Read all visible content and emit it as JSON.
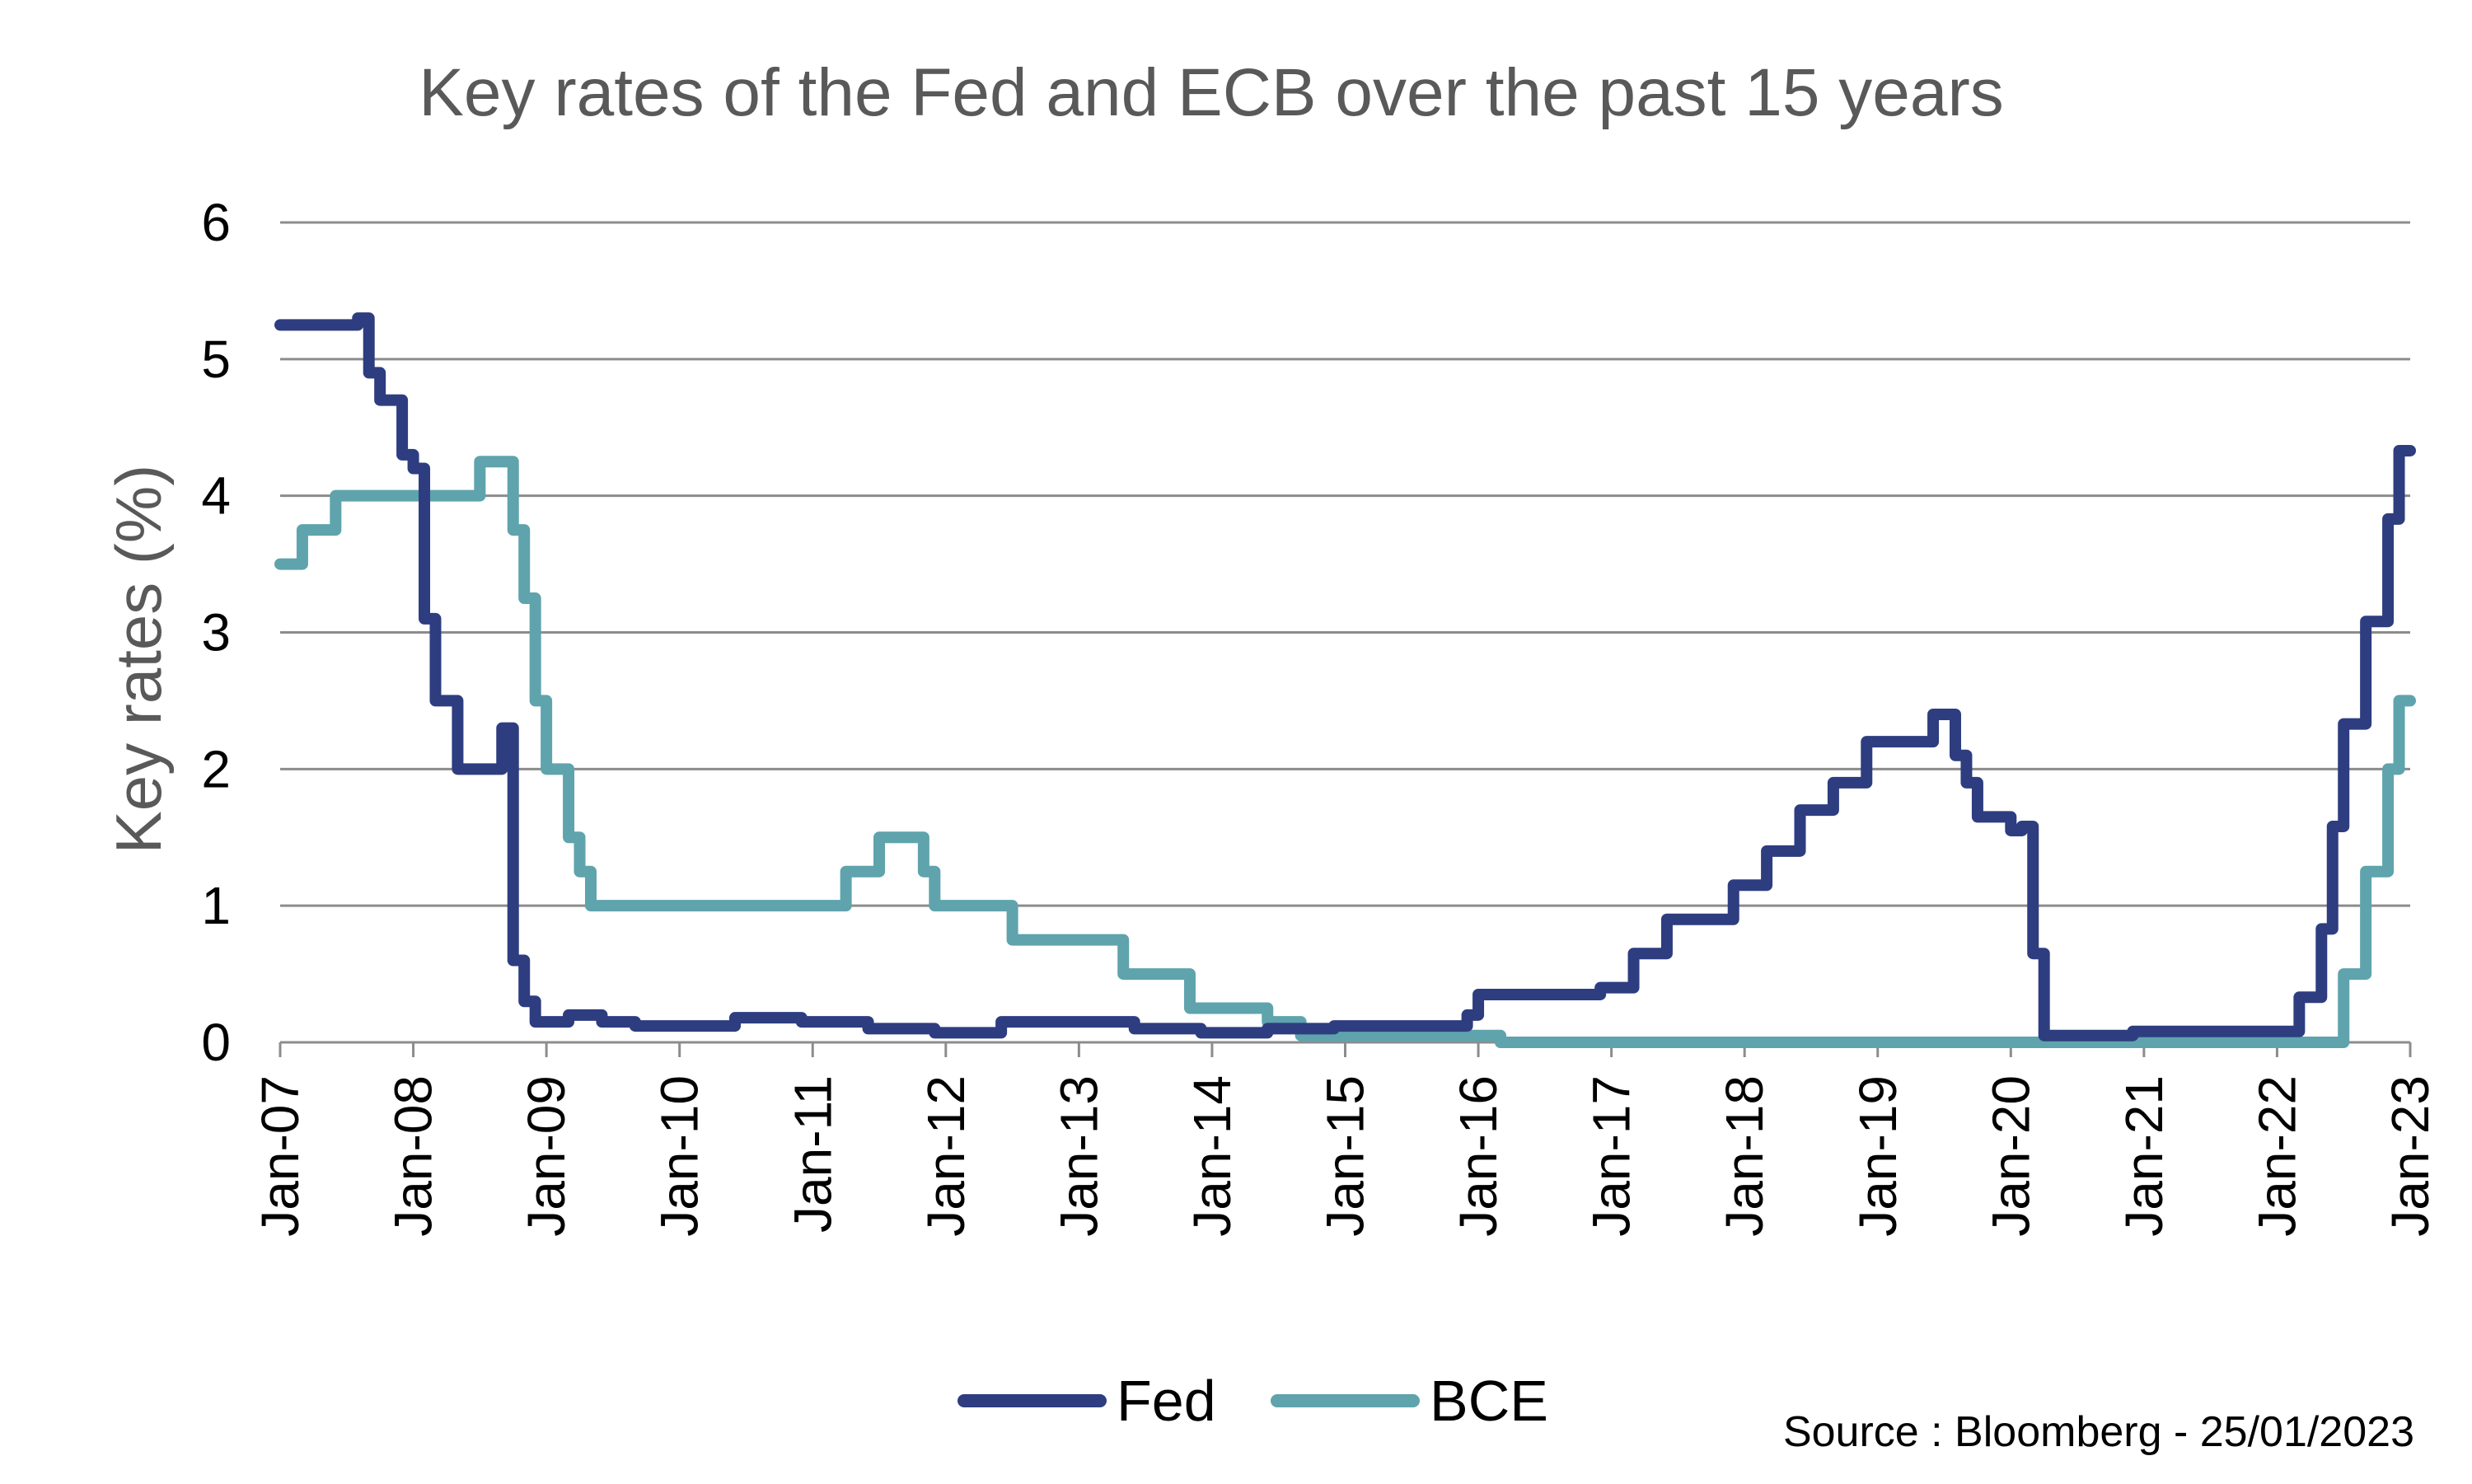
{
  "chart_data": {
    "type": "line",
    "title": "Key rates of the Fed and ECB over the past 15 years",
    "xlabel": "",
    "ylabel": "Key rates (%)",
    "ylim": [
      0,
      6
    ],
    "yticks": [
      "0",
      "1",
      "2",
      "3",
      "4",
      "5",
      "6"
    ],
    "xticks": [
      "Jan-07",
      "Jan-08",
      "Jan-09",
      "Jan-10",
      "Jan-11",
      "Jan-12",
      "Jan-13",
      "Jan-14",
      "Jan-15",
      "Jan-16",
      "Jan-17",
      "Jan-18",
      "Jan-19",
      "Jan-20",
      "Jan-21",
      "Jan-22",
      "Jan-23"
    ],
    "xrange": [
      "2007-01",
      "2023-01"
    ],
    "grid": "horizontal",
    "legend_position": "bottom",
    "source": "Source : Bloomberg - 25/01/2023",
    "series": [
      {
        "name": "Fed",
        "color": "#2e3d80",
        "x": [
          "2007-01",
          "2007-06",
          "2007-08",
          "2007-09",
          "2007-10",
          "2007-12",
          "2008-01",
          "2008-02",
          "2008-03",
          "2008-05",
          "2008-06",
          "2008-08",
          "2008-09",
          "2008-10",
          "2008-11",
          "2008-12",
          "2009-03",
          "2009-06",
          "2009-09",
          "2009-12",
          "2010-06",
          "2010-12",
          "2011-06",
          "2011-12",
          "2012-06",
          "2012-12",
          "2013-06",
          "2013-12",
          "2014-06",
          "2014-12",
          "2015-06",
          "2015-12",
          "2016-01",
          "2016-12",
          "2017-03",
          "2017-06",
          "2017-12",
          "2018-03",
          "2018-06",
          "2018-09",
          "2018-12",
          "2019-06",
          "2019-08",
          "2019-09",
          "2019-10",
          "2020-01",
          "2020-02",
          "2020-03",
          "2020-04",
          "2020-12",
          "2021-06",
          "2021-12",
          "2022-03",
          "2022-05",
          "2022-06",
          "2022-07",
          "2022-09",
          "2022-11",
          "2022-12",
          "2023-01"
        ],
        "values": [
          5.25,
          5.25,
          5.3,
          4.9,
          4.7,
          4.3,
          4.2,
          3.1,
          2.5,
          2.0,
          2.0,
          2.0,
          2.3,
          0.6,
          0.3,
          0.15,
          0.2,
          0.15,
          0.12,
          0.12,
          0.18,
          0.15,
          0.1,
          0.07,
          0.15,
          0.15,
          0.1,
          0.07,
          0.1,
          0.12,
          0.12,
          0.2,
          0.35,
          0.4,
          0.65,
          0.9,
          1.15,
          1.4,
          1.7,
          1.9,
          2.2,
          2.4,
          2.1,
          1.9,
          1.65,
          1.55,
          1.58,
          0.65,
          0.05,
          0.08,
          0.08,
          0.08,
          0.33,
          0.83,
          1.58,
          2.33,
          3.08,
          3.83,
          4.33,
          4.33
        ]
      },
      {
        "name": "BCE",
        "color": "#5fa3ad",
        "x": [
          "2007-01",
          "2007-03",
          "2007-06",
          "2008-06",
          "2008-07",
          "2008-10",
          "2008-11",
          "2008-12",
          "2009-01",
          "2009-03",
          "2009-04",
          "2009-05",
          "2011-04",
          "2011-07",
          "2011-11",
          "2011-12",
          "2012-07",
          "2013-05",
          "2013-11",
          "2014-06",
          "2014-09",
          "2016-03",
          "2022-06",
          "2022-07",
          "2022-09",
          "2022-11",
          "2022-12",
          "2023-01"
        ],
        "values": [
          3.5,
          3.75,
          4.0,
          4.0,
          4.25,
          3.75,
          3.25,
          2.5,
          2.0,
          1.5,
          1.25,
          1.0,
          1.25,
          1.5,
          1.25,
          1.0,
          0.75,
          0.5,
          0.25,
          0.15,
          0.05,
          0.0,
          0.0,
          0.5,
          1.25,
          2.0,
          2.5,
          2.5
        ]
      }
    ]
  }
}
